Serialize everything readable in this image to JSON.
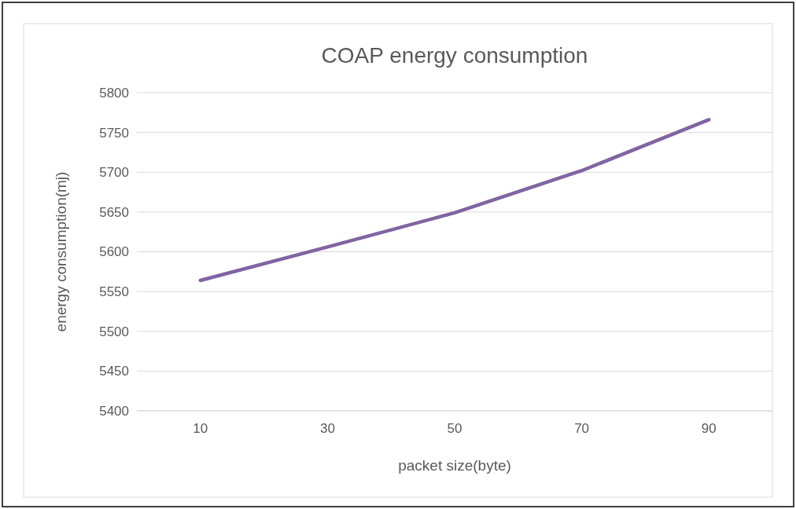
{
  "chart_data": {
    "type": "line",
    "title": "COAP energy consumption",
    "xlabel": "packet size(byte)",
    "ylabel": "energy consumption(mj)",
    "categories": [
      "10",
      "30",
      "50",
      "70",
      "90"
    ],
    "series": [
      {
        "color": "#8064a2",
        "values": [
          5564,
          5606,
          5649,
          5702,
          5766
        ]
      }
    ],
    "ylim": [
      5400,
      5800
    ],
    "yticks": [
      5400,
      5450,
      5500,
      5550,
      5600,
      5650,
      5700,
      5750,
      5800
    ],
    "grid": "y"
  }
}
